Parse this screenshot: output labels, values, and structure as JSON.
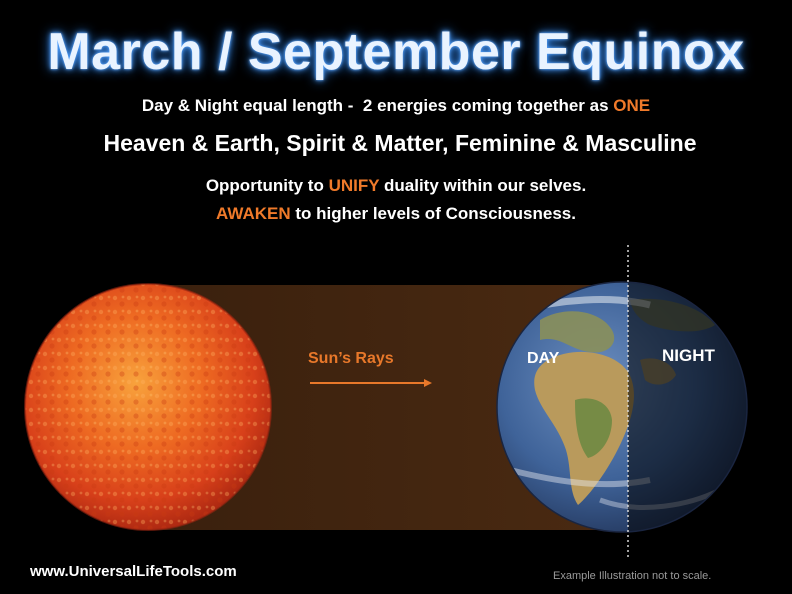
{
  "title": "March / September Equinox",
  "line1": {
    "before": "Day & Night equal length -  2 energies coming together as ",
    "highlight": "ONE"
  },
  "line2": "Heaven & Earth, Spirit & Matter, Feminine & Masculine",
  "line3": {
    "before": "Opportunity to ",
    "highlight": "UNIFY",
    "after": " duality within our selves."
  },
  "line4": {
    "highlight": "AWAKEN",
    "after": " to higher levels of Consciousness."
  },
  "diagram": {
    "rays_label": "Sun’s Rays",
    "day_label": "DAY",
    "night_label": "NIGHT"
  },
  "footer": {
    "website": "www.UniversalLifeTools.com",
    "note": "Example Illustration not to scale."
  },
  "colors": {
    "highlight": "#f07a2a",
    "title_glow": "#4fa0ff",
    "rays_band": "#3a200d",
    "sun": "#e8501a",
    "earth_land": "#b89a5c",
    "earth_ocean": "#3a5f97"
  }
}
